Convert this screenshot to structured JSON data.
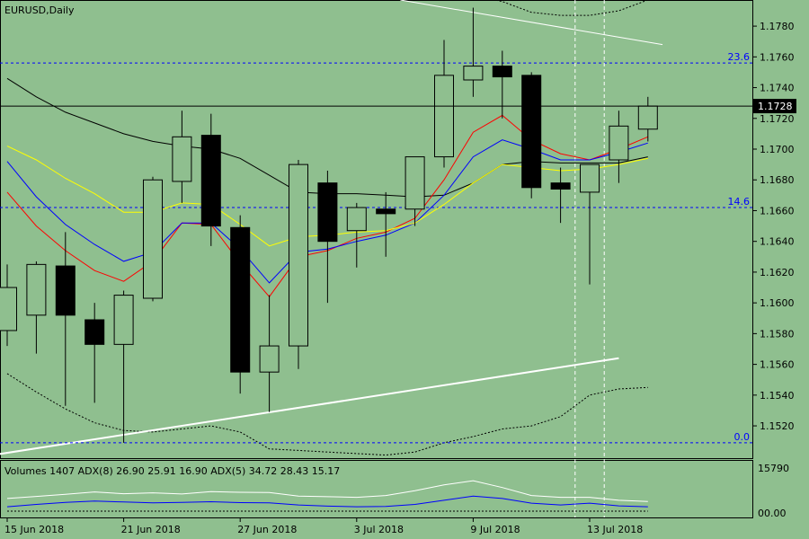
{
  "window": {
    "title": "EURUSD,Daily",
    "background": "#8fbf8f"
  },
  "current_price": {
    "label": "1.1728",
    "value": 1.1728
  },
  "fib_levels": [
    {
      "label": "23.6",
      "value": 1.1756
    },
    {
      "label": "14.6",
      "value": 1.1662
    },
    {
      "label": "0.0",
      "value": 1.1509
    }
  ],
  "indicator": {
    "label": "Volumes 1407 ADX(8) 26.90 25.91 16.90 ADX(5) 34.72 28.43 15.17",
    "max_label": "15790",
    "min_label": "00.00"
  },
  "chart_data": {
    "type": "candlestick",
    "symbol": "EURUSD",
    "timeframe": "Daily",
    "ylim": [
      1.1499,
      1.1797
    ],
    "yticks": [
      "1.1780",
      "1.1760",
      "1.1740",
      "1.1720",
      "1.1700",
      "1.1680",
      "1.1660",
      "1.1640",
      "1.1620",
      "1.1600",
      "1.1580",
      "1.1560",
      "1.1540",
      "1.1520"
    ],
    "xticks": [
      {
        "index": 0,
        "label": "15 Jun 2018"
      },
      {
        "index": 4,
        "label": "21 Jun 2018"
      },
      {
        "index": 8,
        "label": "27 Jun 2018"
      },
      {
        "index": 12,
        "label": "3 Jul 2018"
      },
      {
        "index": 16,
        "label": "9 Jul 2018"
      },
      {
        "index": 20,
        "label": "13 Jul 2018"
      }
    ],
    "candles": [
      {
        "o": 1.1582,
        "h": 1.1625,
        "l": 1.1572,
        "c": 1.161
      },
      {
        "o": 1.1592,
        "h": 1.1627,
        "l": 1.1567,
        "c": 1.1625
      },
      {
        "o": 1.1624,
        "h": 1.1646,
        "l": 1.1533,
        "c": 1.1592
      },
      {
        "o": 1.1589,
        "h": 1.16,
        "l": 1.1535,
        "c": 1.1573
      },
      {
        "o": 1.1573,
        "h": 1.1608,
        "l": 1.1509,
        "c": 1.1605
      },
      {
        "o": 1.1603,
        "h": 1.1682,
        "l": 1.1601,
        "c": 1.168
      },
      {
        "o": 1.1679,
        "h": 1.1725,
        "l": 1.1665,
        "c": 1.1708
      },
      {
        "o": 1.1709,
        "h": 1.1723,
        "l": 1.1637,
        "c": 1.165
      },
      {
        "o": 1.1649,
        "h": 1.1657,
        "l": 1.1541,
        "c": 1.1555
      },
      {
        "o": 1.1555,
        "h": 1.1605,
        "l": 1.1529,
        "c": 1.1572
      },
      {
        "o": 1.1572,
        "h": 1.1693,
        "l": 1.1557,
        "c": 1.169
      },
      {
        "o": 1.1678,
        "h": 1.1686,
        "l": 1.16,
        "c": 1.164
      },
      {
        "o": 1.1647,
        "h": 1.1665,
        "l": 1.1623,
        "c": 1.1662
      },
      {
        "o": 1.1661,
        "h": 1.1672,
        "l": 1.163,
        "c": 1.1658
      },
      {
        "o": 1.1661,
        "h": 1.1694,
        "l": 1.165,
        "c": 1.1695
      },
      {
        "o": 1.1695,
        "h": 1.1771,
        "l": 1.1688,
        "c": 1.1748
      },
      {
        "o": 1.1745,
        "h": 1.1792,
        "l": 1.1734,
        "c": 1.1754
      },
      {
        "o": 1.1754,
        "h": 1.1764,
        "l": 1.172,
        "c": 1.1747
      },
      {
        "o": 1.1748,
        "h": 1.175,
        "l": 1.1668,
        "c": 1.1675
      },
      {
        "o": 1.1678,
        "h": 1.1688,
        "l": 1.1652,
        "c": 1.1674
      },
      {
        "o": 1.1672,
        "h": 1.169,
        "l": 1.1612,
        "c": 1.169
      },
      {
        "o": 1.1693,
        "h": 1.1725,
        "l": 1.1678,
        "c": 1.1715
      },
      {
        "o": 1.1713,
        "h": 1.1734,
        "l": 1.1705,
        "c": 1.1728
      }
    ],
    "ma_lines": [
      {
        "name": "black",
        "color": "#000000",
        "values": [
          1.1746,
          1.1734,
          1.1724,
          1.1717,
          1.171,
          1.1705,
          1.1702,
          1.17,
          1.1694,
          1.1683,
          1.1672,
          1.1671,
          1.1671,
          1.167,
          1.1669,
          1.167,
          1.1678,
          1.169,
          1.1692,
          1.1691,
          1.1691,
          1.1691,
          1.1695
        ]
      },
      {
        "name": "red",
        "color": "#ff0000",
        "values": [
          1.1672,
          1.165,
          1.1634,
          1.1621,
          1.1614,
          1.1627,
          1.1652,
          1.1651,
          1.1626,
          1.1604,
          1.163,
          1.1634,
          1.1642,
          1.1646,
          1.1655,
          1.168,
          1.1711,
          1.1722,
          1.1706,
          1.1697,
          1.1693,
          1.17,
          1.1708
        ]
      },
      {
        "name": "blue",
        "color": "#0000ff",
        "values": [
          1.1692,
          1.1669,
          1.1651,
          1.1638,
          1.1627,
          1.1633,
          1.1652,
          1.1652,
          1.1635,
          1.1613,
          1.1633,
          1.1635,
          1.164,
          1.1644,
          1.1652,
          1.167,
          1.1695,
          1.1706,
          1.17,
          1.1693,
          1.1693,
          1.1698,
          1.1704
        ]
      },
      {
        "name": "yellow",
        "color": "#ffff00",
        "values": [
          1.1702,
          1.1693,
          1.1681,
          1.1671,
          1.1659,
          1.1659,
          1.1665,
          1.1664,
          1.1651,
          1.1637,
          1.1643,
          1.1644,
          1.1646,
          1.1647,
          1.1652,
          1.1664,
          1.1678,
          1.169,
          1.1688,
          1.1686,
          1.1687,
          1.169,
          1.1694
        ]
      }
    ],
    "envelope_lower": [
      1.1554,
      1.1542,
      1.1531,
      1.1522,
      1.1517,
      1.1516,
      1.1518,
      1.152,
      1.1516,
      1.1505,
      1.1504,
      1.1503,
      1.1502,
      1.1501,
      1.1503,
      1.1509,
      1.1513,
      1.1518,
      1.152,
      1.1526,
      1.154,
      1.1544,
      1.1545
    ],
    "envelope_upper": [
      1.1825,
      1.1816,
      1.181,
      1.1806,
      1.1808,
      1.1812,
      1.1818,
      1.182,
      1.1818,
      1.1812,
      1.181,
      1.181,
      1.181,
      1.1808,
      1.1806,
      1.1804,
      1.18,
      1.1796,
      1.1789,
      1.1787,
      1.1787,
      1.179,
      1.1797
    ],
    "trendlines": [
      {
        "color": "#ffffff",
        "from": {
          "index": -0.5,
          "value": 1.1501
        },
        "to": {
          "index": 21.0,
          "value": 1.1564
        }
      },
      {
        "color": "#ffffff",
        "from": {
          "index": 13.5,
          "value": 1.1797
        },
        "to": {
          "index": 22.5,
          "value": 1.1768
        }
      }
    ],
    "vlines": [
      19.5,
      20.5
    ],
    "volume_ylim": [
      0,
      15790
    ],
    "volume_white": [
      5200,
      5900,
      6600,
      7400,
      6800,
      7100,
      6700,
      7500,
      7300,
      7200,
      6000,
      5800,
      5600,
      6200,
      7800,
      9800,
      11200,
      8900,
      6200,
      5600,
      5600,
      4600,
      4200
    ],
    "volume_blue": [
      2400,
      3200,
      3900,
      4300,
      4000,
      3700,
      3900,
      4100,
      3800,
      3700,
      3000,
      2600,
      2400,
      2500,
      3200,
      4600,
      6000,
      5200,
      3600,
      3000,
      3600,
      2700,
      2400
    ],
    "volume_dotted": [
      900,
      900,
      900,
      900,
      900,
      900,
      900,
      900,
      900,
      900,
      900,
      900,
      900,
      900,
      900,
      900,
      900,
      900,
      900,
      900,
      900,
      900,
      900
    ]
  }
}
